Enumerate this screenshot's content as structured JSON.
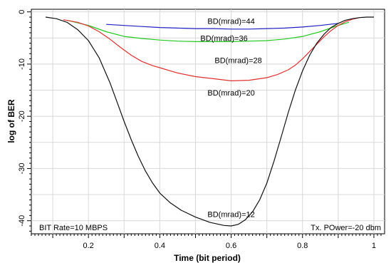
{
  "chart_data": {
    "type": "line",
    "title": "",
    "xlabel": "Time (bit period)",
    "ylabel": "log of BER",
    "xlim": [
      0.04,
      1.03
    ],
    "ylim": [
      -42.5,
      0.5
    ],
    "xticks": [
      0.2,
      0.4,
      0.6,
      0.8,
      1
    ],
    "xtick_labels": [
      "0.2",
      "0.4",
      "0.6",
      "0.8",
      "1"
    ],
    "yticks": [
      0,
      -10,
      -20,
      -30,
      -40
    ],
    "ytick_labels": [
      "0",
      "-10",
      "-20",
      "-30",
      "-40"
    ],
    "grid": true,
    "series": [
      {
        "name": "BD(mrad)=44",
        "color": "#1f1fbf",
        "x": [
          0.25,
          0.3,
          0.35,
          0.4,
          0.45,
          0.5,
          0.55,
          0.6,
          0.65,
          0.7,
          0.75,
          0.8,
          0.85,
          0.9
        ],
        "y": [
          -2.4,
          -2.6,
          -2.8,
          -3.0,
          -3.1,
          -3.2,
          -3.2,
          -3.3,
          -3.3,
          -3.2,
          -3.1,
          -2.9,
          -2.6,
          -2.2
        ]
      },
      {
        "name": "BD(mrad)=36",
        "color": "#22c922",
        "x": [
          0.14,
          0.2,
          0.25,
          0.3,
          0.35,
          0.4,
          0.45,
          0.5,
          0.55,
          0.6,
          0.65,
          0.7,
          0.75,
          0.8,
          0.85,
          0.9,
          0.93
        ],
        "y": [
          -1.6,
          -2.6,
          -3.8,
          -4.7,
          -5.1,
          -5.4,
          -5.6,
          -5.7,
          -5.7,
          -5.7,
          -5.6,
          -5.5,
          -5.2,
          -4.7,
          -3.8,
          -2.6,
          -2.0
        ]
      },
      {
        "name": "BD(mrad)=28",
        "color": "#e03030",
        "x": [
          0.13,
          0.17,
          0.2,
          0.23,
          0.26,
          0.29,
          0.32,
          0.35,
          0.38,
          0.4,
          0.45,
          0.5,
          0.55,
          0.6,
          0.65,
          0.7,
          0.73,
          0.76,
          0.78,
          0.8,
          0.82,
          0.84,
          0.86,
          0.88,
          0.9,
          0.92,
          0.94,
          0.96
        ],
        "y": [
          -1.5,
          -2.0,
          -2.7,
          -3.8,
          -5.2,
          -6.8,
          -8.3,
          -9.5,
          -10.3,
          -10.7,
          -11.7,
          -12.4,
          -12.8,
          -13.2,
          -13.1,
          -12.6,
          -12.0,
          -11.1,
          -10.2,
          -9.0,
          -7.6,
          -6.2,
          -4.8,
          -3.6,
          -2.6,
          -1.9,
          -1.4,
          -1.1
        ]
      },
      {
        "name": "BD(mrad)=12",
        "color": "#111111",
        "x": [
          0.08,
          0.11,
          0.14,
          0.17,
          0.2,
          0.23,
          0.26,
          0.28,
          0.3,
          0.32,
          0.34,
          0.36,
          0.38,
          0.4,
          0.43,
          0.46,
          0.5,
          0.54,
          0.58,
          0.6,
          0.62,
          0.64,
          0.66,
          0.68,
          0.7,
          0.72,
          0.74,
          0.76,
          0.78,
          0.8,
          0.82,
          0.84,
          0.86,
          0.88,
          0.9,
          0.92,
          0.94,
          0.96,
          0.98,
          1.0
        ],
        "y": [
          -1.0,
          -1.3,
          -2.0,
          -3.4,
          -5.5,
          -8.8,
          -13.5,
          -17.2,
          -21.0,
          -24.5,
          -27.7,
          -30.5,
          -32.8,
          -34.7,
          -36.6,
          -38.0,
          -39.3,
          -40.3,
          -40.9,
          -41.0,
          -40.7,
          -39.8,
          -38.3,
          -36.0,
          -32.8,
          -28.6,
          -24.0,
          -19.3,
          -15.0,
          -11.3,
          -8.3,
          -6.0,
          -4.3,
          -3.0,
          -2.2,
          -1.6,
          -1.3,
          -1.1,
          -1.0,
          -1.0
        ]
      }
    ],
    "annotations": [
      {
        "text": "BD(mrad)=44",
        "x": 0.6,
        "y": -2.3
      },
      {
        "text": "BD(mrad)=36",
        "x": 0.58,
        "y": -5.6
      },
      {
        "text": "BD(mrad)=28",
        "x": 0.62,
        "y": -9.8
      },
      {
        "text": "BD(mrad)=20",
        "x": 0.6,
        "y": -16.0
      },
      {
        "text": "BD(mrad)=12",
        "x": 0.6,
        "y": -39.3
      }
    ],
    "notes": {
      "bit_rate": "BIT Rate=10 MBPS",
      "tx_power": "Tx. POwer=-20 dbm"
    }
  }
}
